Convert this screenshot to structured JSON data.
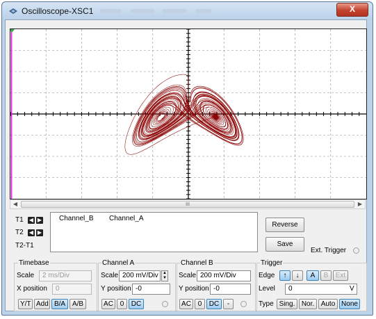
{
  "window": {
    "title": "Oscilloscope-XSC1",
    "close_label": "X"
  },
  "colors": {
    "trace": "#8b0000",
    "cursor_t1": "#ff00ff",
    "cursor_t2": "#3da64b",
    "grid": "#8c8c8c",
    "axis": "#000000"
  },
  "scrollbar": {
    "left_icon": "◀",
    "right_icon": "▶",
    "grip": "III"
  },
  "cursors": {
    "t1": "T1",
    "t2": "T2",
    "diff": "T2-T1",
    "left_icon": "◀",
    "right_icon": "▶"
  },
  "readout": {
    "col1": "Channel_B",
    "col2": "Channel_A"
  },
  "buttons": {
    "reverse": "Reverse",
    "save": "Save"
  },
  "ext_trigger": "Ext. Trigger",
  "timebase": {
    "title": "Timebase",
    "scale_label": "Scale",
    "scale_value": "2 ms/Div",
    "xpos_label": "X position",
    "xpos_value": "0",
    "modes": [
      "Y/T",
      "Add",
      "B/A",
      "A/B"
    ]
  },
  "channel_a": {
    "title": "Channel A",
    "scale_label": "Scale",
    "scale_value": "200 mV/Div",
    "ypos_label": "Y position",
    "ypos_value": "-0",
    "coupling": [
      "AC",
      "0",
      "DC"
    ]
  },
  "channel_b": {
    "title": "Channel B",
    "scale_label": "Scale",
    "scale_value": "200 mV/Div",
    "ypos_label": "Y position",
    "ypos_value": "-0",
    "coupling": [
      "AC",
      "0",
      "DC",
      "-"
    ]
  },
  "trigger": {
    "title": "Trigger",
    "edge_label": "Edge",
    "edge_rise_icon": "↑",
    "edge_fall_icon": "↓",
    "sources": [
      "A",
      "B",
      "Ext"
    ],
    "level_label": "Level",
    "level_value": "0",
    "level_unit": "V",
    "type_label": "Type",
    "types": [
      "Sing.",
      "Nor.",
      "Auto",
      "None"
    ]
  }
}
